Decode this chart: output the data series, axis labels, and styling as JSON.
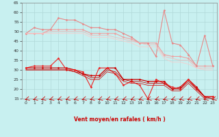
{
  "title": "",
  "xlabel": "Vent moyen/en rafales ( km/h )",
  "background_color": "#c8f0f0",
  "grid_color": "#b0d8d8",
  "ylim": [
    15,
    65
  ],
  "xlim": [
    -0.5,
    23.5
  ],
  "yticks": [
    15,
    20,
    25,
    30,
    35,
    40,
    45,
    50,
    55,
    60,
    65
  ],
  "xticks": [
    0,
    1,
    2,
    3,
    4,
    5,
    6,
    7,
    8,
    9,
    10,
    11,
    12,
    13,
    14,
    15,
    16,
    17,
    18,
    19,
    20,
    21,
    22,
    23
  ],
  "x": [
    0,
    1,
    2,
    3,
    4,
    5,
    6,
    7,
    8,
    9,
    10,
    11,
    12,
    13,
    14,
    15,
    16,
    17,
    18,
    19,
    20,
    21,
    22,
    23
  ],
  "series": [
    {
      "y": [
        49,
        49,
        49,
        51,
        51,
        51,
        51,
        51,
        49,
        49,
        49,
        49,
        47,
        46,
        44,
        44,
        44,
        38,
        37,
        37,
        36,
        32,
        32,
        32
      ],
      "color": "#f0a0a0",
      "lw": 0.8,
      "marker": "D",
      "ms": 1.5
    },
    {
      "y": [
        49,
        52,
        51,
        51,
        57,
        56,
        56,
        54,
        52,
        52,
        51,
        51,
        49,
        47,
        44,
        44,
        37,
        61,
        44,
        43,
        38,
        32,
        48,
        32
      ],
      "color": "#e88888",
      "lw": 0.8,
      "marker": "D",
      "ms": 1.5
    },
    {
      "y": [
        49,
        49,
        49,
        50,
        50,
        50,
        50,
        50,
        48,
        48,
        48,
        47,
        46,
        45,
        44,
        43,
        43,
        37,
        36,
        35,
        35,
        31,
        31,
        31
      ],
      "color": "#f5b8b8",
      "lw": 0.6,
      "marker": null,
      "ms": 0
    },
    {
      "y": [
        49,
        49,
        49,
        49,
        49,
        49,
        49,
        49,
        47,
        47,
        47,
        46,
        45,
        44,
        42,
        42,
        42,
        36,
        34,
        34,
        33,
        31,
        30,
        30
      ],
      "color": "#f8cccc",
      "lw": 0.6,
      "marker": null,
      "ms": 0
    },
    {
      "y": [
        31,
        31,
        31,
        31,
        31,
        31,
        30,
        28,
        27,
        27,
        31,
        31,
        25,
        25,
        25,
        24,
        24,
        24,
        20,
        21,
        25,
        21,
        16,
        16
      ],
      "color": "#cc0000",
      "lw": 0.9,
      "marker": "D",
      "ms": 1.5
    },
    {
      "y": [
        31,
        32,
        32,
        32,
        36,
        30,
        30,
        29,
        21,
        31,
        31,
        28,
        22,
        24,
        22,
        15,
        25,
        23,
        21,
        20,
        25,
        20,
        16,
        16
      ],
      "color": "#ee2222",
      "lw": 0.8,
      "marker": "D",
      "ms": 1.5
    },
    {
      "y": [
        30,
        30,
        30,
        30,
        30,
        30,
        29,
        28,
        26,
        26,
        30,
        29,
        25,
        24,
        24,
        23,
        23,
        23,
        20,
        20,
        24,
        20,
        16,
        15
      ],
      "color": "#bb0000",
      "lw": 0.6,
      "marker": null,
      "ms": 0
    },
    {
      "y": [
        30,
        30,
        30,
        30,
        30,
        30,
        29,
        27,
        25,
        25,
        29,
        28,
        24,
        23,
        23,
        22,
        22,
        22,
        19,
        19,
        23,
        19,
        15,
        15
      ],
      "color": "#cc1111",
      "lw": 0.6,
      "marker": null,
      "ms": 0
    }
  ],
  "arrow_color": "#cc0000"
}
